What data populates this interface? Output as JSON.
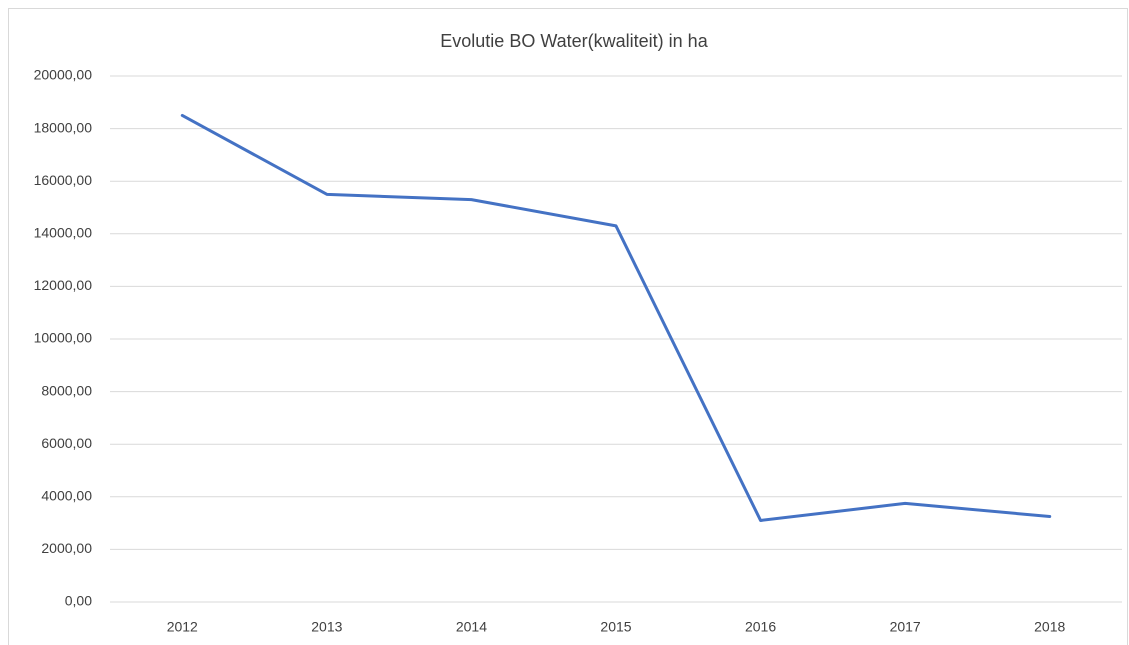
{
  "chart_data": {
    "type": "line",
    "title": "Evolutie BO Water(kwaliteit) in ha",
    "categories": [
      "2012",
      "2013",
      "2014",
      "2015",
      "2016",
      "2017",
      "2018"
    ],
    "series": [
      {
        "color": "#4472c4",
        "values": [
          18500,
          15500,
          15300,
          14300,
          3100,
          3750,
          3250
        ]
      }
    ],
    "ylim": [
      0,
      20000
    ],
    "yticks": [
      {
        "value": 0,
        "label": "0,00"
      },
      {
        "value": 2000,
        "label": "2000,00"
      },
      {
        "value": 4000,
        "label": "4000,00"
      },
      {
        "value": 6000,
        "label": "6000,00"
      },
      {
        "value": 8000,
        "label": "8000,00"
      },
      {
        "value": 10000,
        "label": "10000,00"
      },
      {
        "value": 12000,
        "label": "12000,00"
      },
      {
        "value": 14000,
        "label": "14000,00"
      },
      {
        "value": 16000,
        "label": "16000,00"
      },
      {
        "value": 18000,
        "label": "18000,00"
      },
      {
        "value": 20000,
        "label": "20000,00"
      }
    ],
    "grid": true
  }
}
